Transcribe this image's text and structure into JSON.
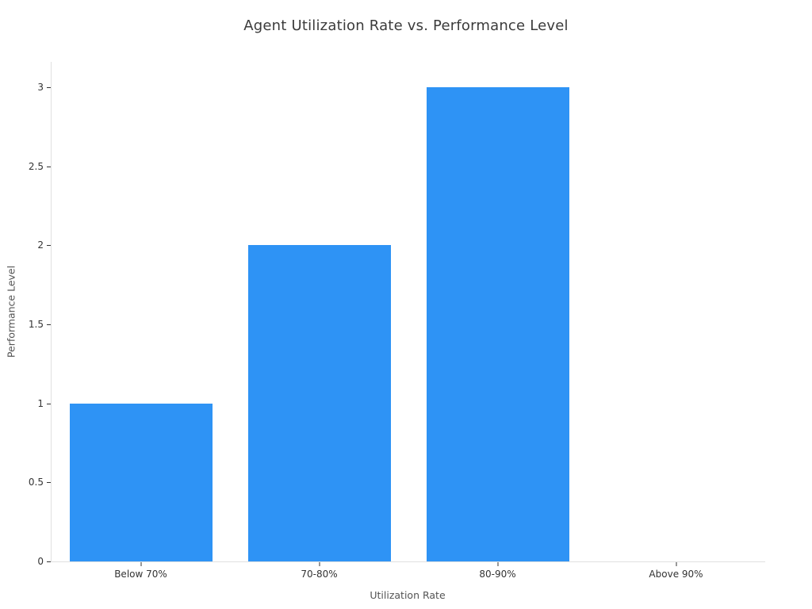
{
  "chart_data": {
    "type": "bar",
    "title": "Agent Utilization Rate vs. Performance Level",
    "xlabel": "Utilization Rate",
    "ylabel": "Performance Level",
    "categories": [
      "Below 70%",
      "70-80%",
      "80-90%",
      "Above 90%"
    ],
    "values": [
      1,
      2,
      3,
      0
    ],
    "yticks": [
      0,
      0.5,
      1,
      1.5,
      2,
      2.5,
      3
    ],
    "ylim": [
      0,
      3.16
    ],
    "bar_color": "#2E93F5",
    "axis_line_color": "#E0E0E0",
    "tick_color": "#333333",
    "text_color": "#3B3B3B",
    "axis_title_color": "#545454",
    "background": "#FFFFFF",
    "grid": false,
    "legend": "none"
  }
}
